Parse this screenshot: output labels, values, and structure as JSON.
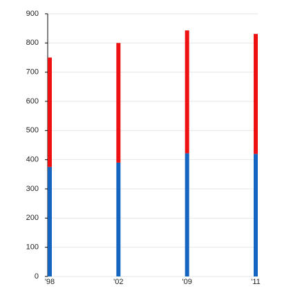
{
  "chart_data": {
    "type": "stacked-bar",
    "categories": [
      "'98",
      "'02",
      "'09",
      "'11"
    ],
    "series": [
      {
        "color": "#1565c0",
        "values": [
          375,
          390,
          422,
          420
        ]
      },
      {
        "color": "#ee1111",
        "values": [
          375,
          410,
          421,
          411
        ]
      }
    ],
    "ylim": [
      0,
      900
    ],
    "yticks": [
      0,
      100,
      200,
      300,
      400,
      500,
      600,
      700,
      800,
      900
    ],
    "grid": true
  }
}
